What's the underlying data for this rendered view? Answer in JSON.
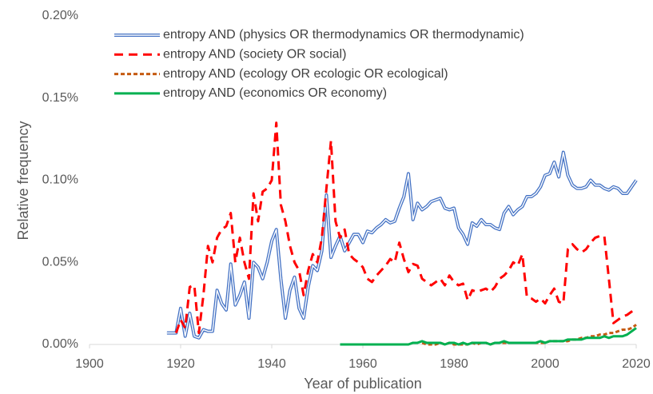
{
  "chart_data": {
    "type": "line",
    "xlabel": "Year of publication",
    "ylabel": "Relative frequency",
    "x": [
      1917,
      1918,
      1919,
      1920,
      1921,
      1922,
      1923,
      1924,
      1925,
      1926,
      1927,
      1928,
      1929,
      1930,
      1931,
      1932,
      1933,
      1934,
      1935,
      1936,
      1937,
      1938,
      1939,
      1940,
      1941,
      1942,
      1943,
      1944,
      1945,
      1946,
      1947,
      1948,
      1949,
      1950,
      1951,
      1952,
      1953,
      1954,
      1955,
      1956,
      1957,
      1958,
      1959,
      1960,
      1961,
      1962,
      1963,
      1964,
      1965,
      1966,
      1967,
      1968,
      1969,
      1970,
      1971,
      1972,
      1973,
      1974,
      1975,
      1976,
      1977,
      1978,
      1979,
      1980,
      1981,
      1982,
      1983,
      1984,
      1985,
      1986,
      1987,
      1988,
      1989,
      1990,
      1991,
      1992,
      1993,
      1994,
      1995,
      1996,
      1997,
      1998,
      1999,
      2000,
      2001,
      2002,
      2003,
      2004,
      2005,
      2006,
      2007,
      2008,
      2009,
      2010,
      2011,
      2012,
      2013,
      2014,
      2015,
      2016,
      2017,
      2018,
      2019,
      2020
    ],
    "series": [
      {
        "name": "entropy AND (physics OR thermodynamics OR thermodynamic)",
        "color": "#4472c4",
        "style": "double",
        "values": [
          0.007,
          0.007,
          0.007,
          0.022,
          0.005,
          0.019,
          0.005,
          0.004,
          0.009,
          0.008,
          0.008,
          0.033,
          0.025,
          0.021,
          0.049,
          0.024,
          0.03,
          0.038,
          0.016,
          0.05,
          0.047,
          0.04,
          0.05,
          0.063,
          0.07,
          0.04,
          0.016,
          0.033,
          0.041,
          0.022,
          0.016,
          0.035,
          0.048,
          0.045,
          0.057,
          0.091,
          0.053,
          0.06,
          0.066,
          0.057,
          0.062,
          0.067,
          0.067,
          0.062,
          0.069,
          0.068,
          0.071,
          0.073,
          0.076,
          0.074,
          0.075,
          0.083,
          0.09,
          0.104,
          0.076,
          0.086,
          0.082,
          0.084,
          0.087,
          0.088,
          0.089,
          0.083,
          0.082,
          0.083,
          0.071,
          0.067,
          0.061,
          0.074,
          0.072,
          0.076,
          0.073,
          0.073,
          0.071,
          0.07,
          0.08,
          0.084,
          0.079,
          0.082,
          0.084,
          0.09,
          0.09,
          0.092,
          0.096,
          0.103,
          0.104,
          0.111,
          0.102,
          0.117,
          0.103,
          0.097,
          0.095,
          0.095,
          0.096,
          0.1,
          0.097,
          0.097,
          0.095,
          0.094,
          0.096,
          0.095,
          0.092,
          0.092,
          0.096,
          0.1
        ]
      },
      {
        "name": "entropy AND (society OR social)",
        "color": "#ff0000",
        "style": "dash",
        "values": [
          null,
          null,
          0.007,
          0.015,
          0.01,
          0.035,
          0.036,
          0.007,
          0.03,
          0.06,
          0.05,
          0.065,
          0.07,
          0.072,
          0.08,
          0.05,
          0.065,
          0.05,
          0.04,
          0.092,
          0.075,
          0.093,
          0.095,
          0.1,
          0.135,
          0.085,
          0.075,
          0.06,
          0.05,
          0.045,
          0.03,
          0.045,
          0.055,
          0.05,
          0.065,
          0.095,
          0.124,
          0.075,
          0.065,
          0.07,
          0.055,
          0.052,
          0.05,
          0.047,
          0.04,
          0.038,
          0.042,
          0.045,
          0.048,
          0.052,
          0.05,
          0.062,
          0.052,
          0.044,
          0.049,
          0.048,
          0.04,
          0.038,
          0.036,
          0.038,
          0.04,
          0.036,
          0.042,
          0.038,
          0.036,
          0.037,
          0.027,
          0.033,
          0.032,
          0.033,
          0.034,
          0.032,
          0.035,
          0.04,
          0.042,
          0.045,
          0.05,
          0.048,
          0.055,
          0.029,
          0.028,
          0.026,
          0.028,
          0.025,
          0.03,
          0.034,
          0.026,
          0.025,
          0.058,
          0.061,
          0.058,
          0.056,
          0.058,
          0.062,
          0.065,
          0.066,
          0.066,
          0.04,
          0.013,
          0.015,
          0.017,
          0.018,
          0.02,
          0.022
        ]
      },
      {
        "name": "entropy AND (ecology OR ecologic OR ecological)",
        "color": "#c55a11",
        "style": "dot",
        "values": [
          null,
          null,
          null,
          null,
          null,
          null,
          null,
          null,
          null,
          null,
          null,
          null,
          null,
          null,
          null,
          null,
          null,
          null,
          null,
          null,
          null,
          null,
          null,
          null,
          null,
          null,
          null,
          null,
          null,
          null,
          null,
          null,
          null,
          null,
          null,
          null,
          null,
          null,
          null,
          null,
          null,
          null,
          null,
          null,
          null,
          null,
          null,
          null,
          null,
          null,
          null,
          null,
          null,
          null,
          null,
          null,
          0.001,
          0.0,
          0.0,
          0.0,
          0.001,
          0.0,
          0.001,
          0.0,
          0.0,
          0.0,
          0.0,
          0.001,
          0.0,
          0.001,
          0.001,
          0.0,
          0.001,
          0.001,
          0.001,
          0.001,
          0.001,
          0.001,
          0.001,
          0.001,
          0.001,
          0.001,
          0.001,
          0.001,
          0.002,
          0.002,
          0.002,
          0.002,
          0.002,
          0.003,
          0.003,
          0.004,
          0.004,
          0.005,
          0.005,
          0.006,
          0.006,
          0.007,
          0.007,
          0.008,
          0.009,
          0.009,
          0.01,
          0.012
        ]
      },
      {
        "name": "entropy AND (economics OR economy)",
        "color": "#00b050",
        "style": "solid",
        "values": [
          null,
          null,
          null,
          null,
          null,
          null,
          null,
          null,
          null,
          null,
          null,
          null,
          null,
          null,
          null,
          null,
          null,
          null,
          null,
          null,
          null,
          null,
          null,
          null,
          null,
          null,
          null,
          null,
          null,
          null,
          null,
          null,
          null,
          null,
          null,
          null,
          null,
          null,
          0.0,
          0.0,
          0.0,
          0.0,
          0.0,
          0.0,
          0.0,
          0.0,
          0.0,
          0.0,
          0.0,
          0.0,
          0.0,
          0.0,
          0.0,
          0.0,
          0.001,
          0.001,
          0.002,
          0.001,
          0.001,
          0.001,
          0.001,
          0.0,
          0.001,
          0.001,
          0.0,
          0.001,
          0.0,
          0.001,
          0.001,
          0.001,
          0.001,
          0.0,
          0.001,
          0.001,
          0.002,
          0.001,
          0.001,
          0.001,
          0.001,
          0.001,
          0.001,
          0.001,
          0.002,
          0.001,
          0.002,
          0.002,
          0.002,
          0.002,
          0.003,
          0.003,
          0.003,
          0.003,
          0.004,
          0.004,
          0.004,
          0.004,
          0.005,
          0.004,
          0.005,
          0.005,
          0.005,
          0.006,
          0.008,
          0.01
        ]
      }
    ],
    "xlim": [
      1900,
      2020
    ],
    "xticks": [
      1900,
      1920,
      1940,
      1960,
      1980,
      2000,
      2020
    ],
    "ylim": [
      0,
      0.2
    ],
    "yticks": [
      {
        "value": 0,
        "label": "0.00%"
      },
      {
        "value": 0.05,
        "label": "0.05%"
      },
      {
        "value": 0.1,
        "label": "0.10%"
      },
      {
        "value": 0.15,
        "label": "0.15%"
      },
      {
        "value": 0.2,
        "label": "0.20%"
      }
    ],
    "legend": "upper left",
    "grid": false
  }
}
